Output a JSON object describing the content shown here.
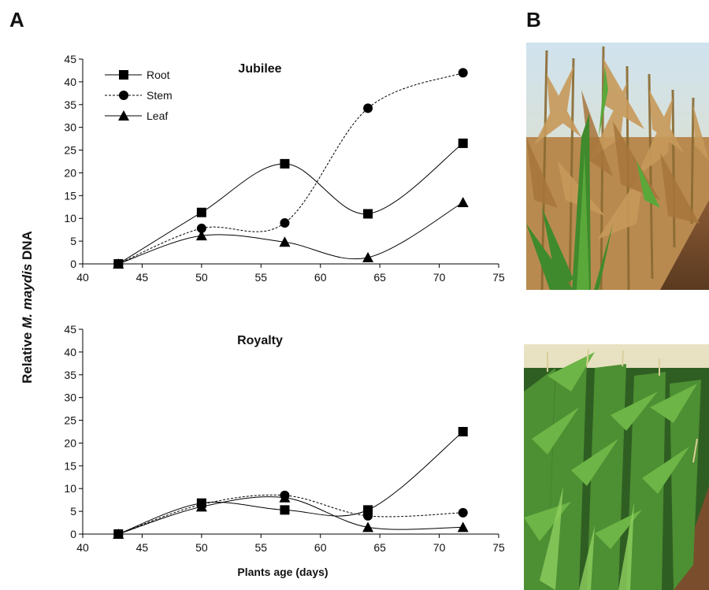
{
  "panel_labels": {
    "a": "A",
    "b": "B"
  },
  "chart_data": [
    {
      "type": "line",
      "title": "Jubilee",
      "xlabel": "",
      "ylabel": "",
      "xlim": [
        40,
        75
      ],
      "ylim": [
        0,
        45
      ],
      "xticks": [
        40,
        45,
        50,
        55,
        60,
        65,
        70,
        75
      ],
      "yticks": [
        0,
        5,
        10,
        15,
        20,
        25,
        30,
        35,
        40,
        45
      ],
      "legend": "top-left",
      "grid": false,
      "x": [
        43,
        50,
        57,
        64,
        72
      ],
      "series": [
        {
          "name": "Root",
          "marker": "square",
          "dash": "solid",
          "values": [
            0,
            11.3,
            22,
            11,
            26.5
          ]
        },
        {
          "name": "Stem",
          "marker": "circle",
          "dash": "dotted",
          "values": [
            0,
            7.8,
            9,
            34.2,
            42
          ]
        },
        {
          "name": "Leaf",
          "marker": "triangle",
          "dash": "solid",
          "values": [
            0,
            6.2,
            4.8,
            1.4,
            13.5
          ]
        }
      ]
    },
    {
      "type": "line",
      "title": "Royalty",
      "xlabel": "Plants age (days)",
      "ylabel": "",
      "xlim": [
        40,
        75
      ],
      "ylim": [
        0,
        45
      ],
      "xticks": [
        40,
        45,
        50,
        55,
        60,
        65,
        70,
        75
      ],
      "yticks": [
        0,
        5,
        10,
        15,
        20,
        25,
        30,
        35,
        40,
        45
      ],
      "grid": false,
      "x": [
        43,
        50,
        57,
        64,
        72
      ],
      "series": [
        {
          "name": "Root",
          "marker": "square",
          "dash": "solid",
          "values": [
            0,
            6.8,
            5.3,
            5.3,
            22.5
          ]
        },
        {
          "name": "Stem",
          "marker": "circle",
          "dash": "dotted",
          "values": [
            0,
            6.5,
            8.5,
            4,
            4.7
          ]
        },
        {
          "name": "Leaf",
          "marker": "triangle",
          "dash": "solid",
          "values": [
            0,
            6,
            8,
            1.5,
            1.5
          ]
        }
      ]
    }
  ],
  "shared_ylabel": {
    "prefix": "Relative ",
    "italic": "M. maydis",
    "suffix": " DNA"
  },
  "photos": [
    {
      "description_icon": "diseased-maize-field-photo"
    },
    {
      "description_icon": "healthy-maize-field-photo"
    }
  ]
}
